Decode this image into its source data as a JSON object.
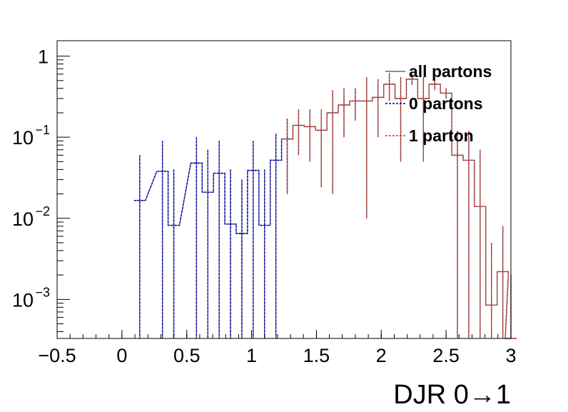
{
  "chart_data": {
    "type": "histogram",
    "xlabel": "DJR 0→1",
    "xlim": [
      -0.5,
      3.0
    ],
    "ylim": [
      0.00033,
      1.55
    ],
    "yscale": "log",
    "bin_width": 0.0875,
    "x_ticks": [
      {
        "value": -0.5,
        "label": "−0.5"
      },
      {
        "value": 0,
        "label": "0"
      },
      {
        "value": 0.5,
        "label": "0.5"
      },
      {
        "value": 1,
        "label": "1"
      },
      {
        "value": 1.5,
        "label": "1.5"
      },
      {
        "value": 2,
        "label": "2"
      },
      {
        "value": 2.5,
        "label": "2.5"
      },
      {
        "value": 3,
        "label": "3"
      }
    ],
    "y_ticks": [
      {
        "value": 1,
        "base": "1",
        "exp": ""
      },
      {
        "value": 0.1,
        "base": "10",
        "exp": "−1"
      },
      {
        "value": 0.01,
        "base": "10",
        "exp": "−2"
      },
      {
        "value": 0.001,
        "base": "10",
        "exp": "−3"
      }
    ],
    "legend": {
      "position": "top-right",
      "entries": [
        "all partons",
        "0 partons",
        "1 parton"
      ]
    },
    "series": [
      {
        "name": "all partons",
        "color": "#555555",
        "style": "solid",
        "bins": [
          [
            0.1375,
            0.0166,
            0.06
          ],
          [
            0.3125,
            0.038,
            0.09
          ],
          [
            0.4,
            0.0082,
            0.04
          ],
          [
            0.575,
            0.048,
            0.1
          ],
          [
            0.6625,
            0.021,
            0.07
          ],
          [
            0.75,
            0.036,
            0.09
          ],
          [
            0.8375,
            0.0085,
            0.04
          ],
          [
            0.925,
            0.0065,
            0.03
          ],
          [
            1.0125,
            0.039,
            0.09
          ],
          [
            1.1,
            0.0082,
            0.04
          ],
          [
            1.1875,
            0.052,
            0.11
          ],
          [
            1.275,
            0.095,
            0.17
          ],
          [
            1.3625,
            0.14,
            0.22
          ],
          [
            1.45,
            0.135,
            0.22
          ],
          [
            1.5375,
            0.122,
            0.22
          ],
          [
            1.625,
            0.2,
            0.38
          ],
          [
            1.7125,
            0.25,
            0.4
          ],
          [
            1.8,
            0.28,
            0.4
          ],
          [
            1.8875,
            0.28,
            0.55
          ],
          [
            1.975,
            0.31,
            0.52
          ],
          [
            2.0625,
            0.45,
            0.62
          ],
          [
            2.15,
            0.3,
            0.55
          ],
          [
            2.2375,
            0.52,
            0.6
          ],
          [
            2.325,
            0.3,
            0.55
          ],
          [
            2.4125,
            0.45,
            0.52
          ],
          [
            2.5,
            0.35,
            0.4
          ],
          [
            2.5875,
            0.06,
            0.12
          ],
          [
            2.675,
            0.052,
            0.12
          ],
          [
            2.7625,
            0.014,
            0.07
          ],
          [
            2.85,
            0.00085,
            0.005
          ],
          [
            2.9375,
            0.0022,
            0.008
          ],
          [
            3.0,
            0.0003,
            0.002
          ]
        ]
      }
    ],
    "all_partons": [
      {
        "x": 0.1375,
        "y": 0.0166
      },
      {
        "x": 0.225,
        "y": 0.00033
      },
      {
        "x": 0.3125,
        "y": 0.038
      },
      {
        "x": 0.4,
        "y": 0.0082
      },
      {
        "x": 0.4875,
        "y": 0.00033
      },
      {
        "x": 0.575,
        "y": 0.048
      },
      {
        "x": 0.6625,
        "y": 0.021
      },
      {
        "x": 0.75,
        "y": 0.036
      },
      {
        "x": 0.8375,
        "y": 0.0085
      },
      {
        "x": 0.925,
        "y": 0.0065
      },
      {
        "x": 1.0125,
        "y": 0.039
      },
      {
        "x": 1.1,
        "y": 0.0082
      }
    ]
  }
}
